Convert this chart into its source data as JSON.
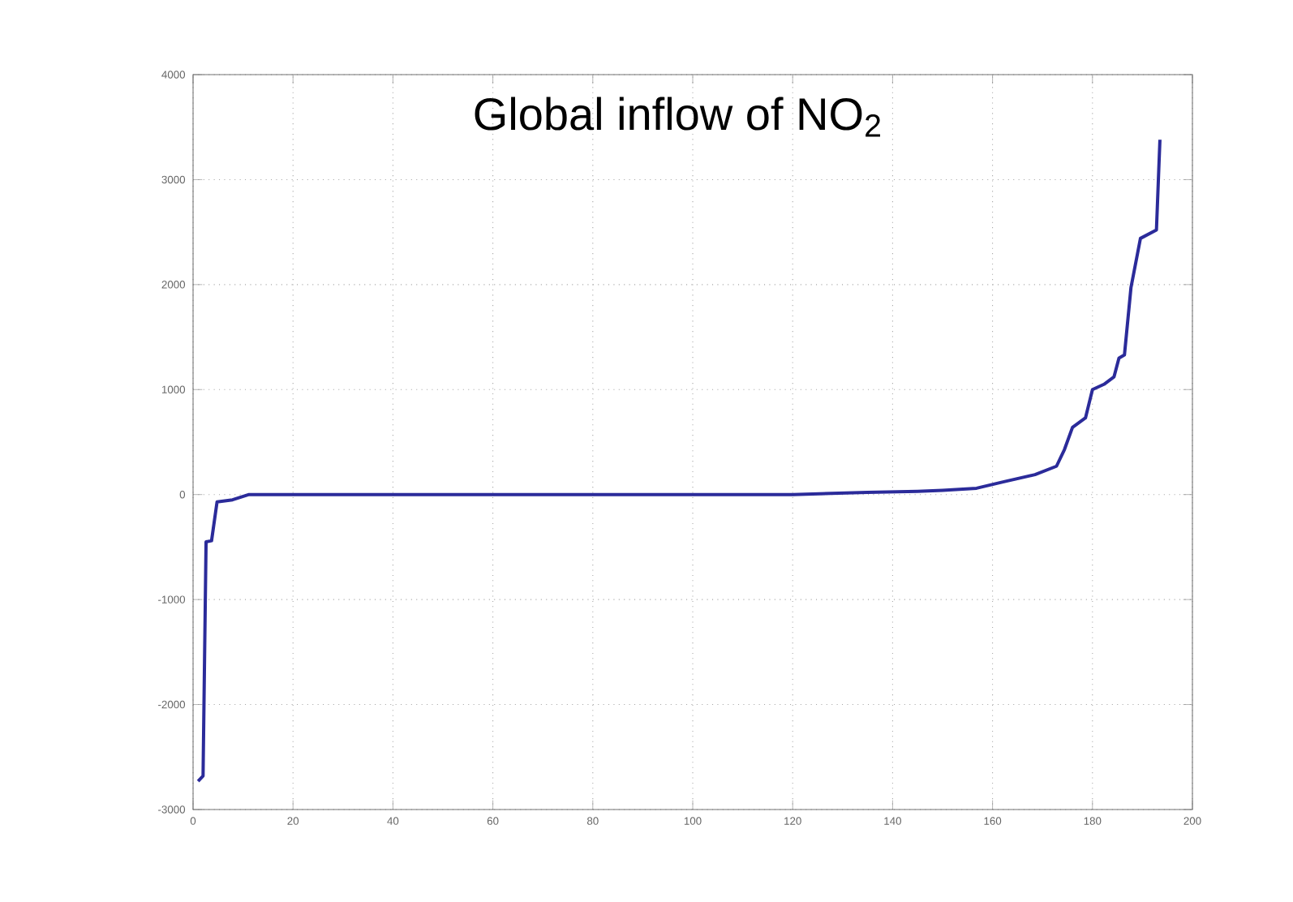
{
  "chart_data": {
    "type": "line",
    "title": "Global inflow of NO$_{2}$",
    "x": [
      1,
      2,
      2.6,
      3.7,
      4.8,
      7.9,
      11.2,
      15,
      18,
      25,
      40,
      60,
      80,
      100,
      120,
      135,
      145,
      150,
      156.8,
      162.1,
      168.5,
      172.8,
      174.4,
      176,
      178.6,
      180,
      182.3,
      184.3,
      185.3,
      186.4,
      187.7,
      189.6,
      192.8,
      193.5
    ],
    "series": [
      {
        "color": "#2b2b9a",
        "values": [
          -2730,
          -2680,
          -450,
          -440,
          -70,
          -50,
          0,
          0,
          0,
          0,
          0,
          0,
          0,
          0,
          0,
          20,
          30,
          40,
          60,
          120,
          190,
          270,
          430,
          640,
          730,
          1000,
          1050,
          1120,
          1300,
          1330,
          1970,
          2440,
          2520,
          3380
        ]
      }
    ],
    "xlim": [
      0,
      200
    ],
    "ylim": [
      -3000,
      4000
    ],
    "xticks": [
      0,
      20,
      40,
      60,
      80,
      100,
      120,
      140,
      160,
      180,
      200
    ],
    "yticks": [
      -3000,
      -2000,
      -1000,
      0,
      1000,
      2000,
      3000,
      4000
    ],
    "grid": true
  }
}
